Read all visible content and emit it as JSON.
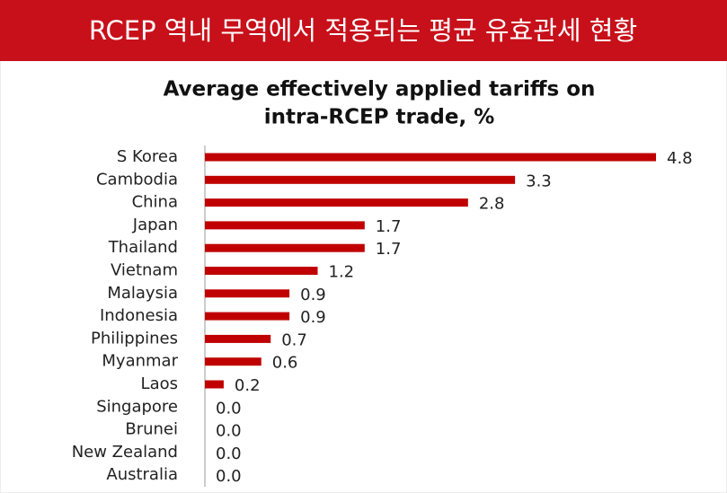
{
  "header": {
    "title": "RCEP 역내 무역에서 적용되는 평균 유효관세 현황"
  },
  "chart_data": {
    "type": "bar",
    "orientation": "horizontal",
    "title": [
      "Average effectively applied tariffs on",
      "intra-RCEP trade, %"
    ],
    "categories": [
      "S Korea",
      "Cambodia",
      "China",
      "Japan",
      "Thailand",
      "Vietnam",
      "Malaysia",
      "Indonesia",
      "Philippines",
      "Myanmar",
      "Laos",
      "Singapore",
      "Brunei",
      "New Zealand",
      "Australia"
    ],
    "values": [
      4.8,
      3.3,
      2.8,
      1.7,
      1.7,
      1.2,
      0.9,
      0.9,
      0.7,
      0.6,
      0.2,
      0,
      0,
      0,
      0
    ],
    "value_labels": [
      "4.8",
      "3.3",
      "2.8",
      "1.7",
      "1.7",
      "1.2",
      "0.9",
      "0.9",
      "0.7",
      "0.6",
      "0.2",
      "0.0",
      "0.0",
      "0.0",
      "0.0"
    ],
    "color": "#c00000"
  }
}
